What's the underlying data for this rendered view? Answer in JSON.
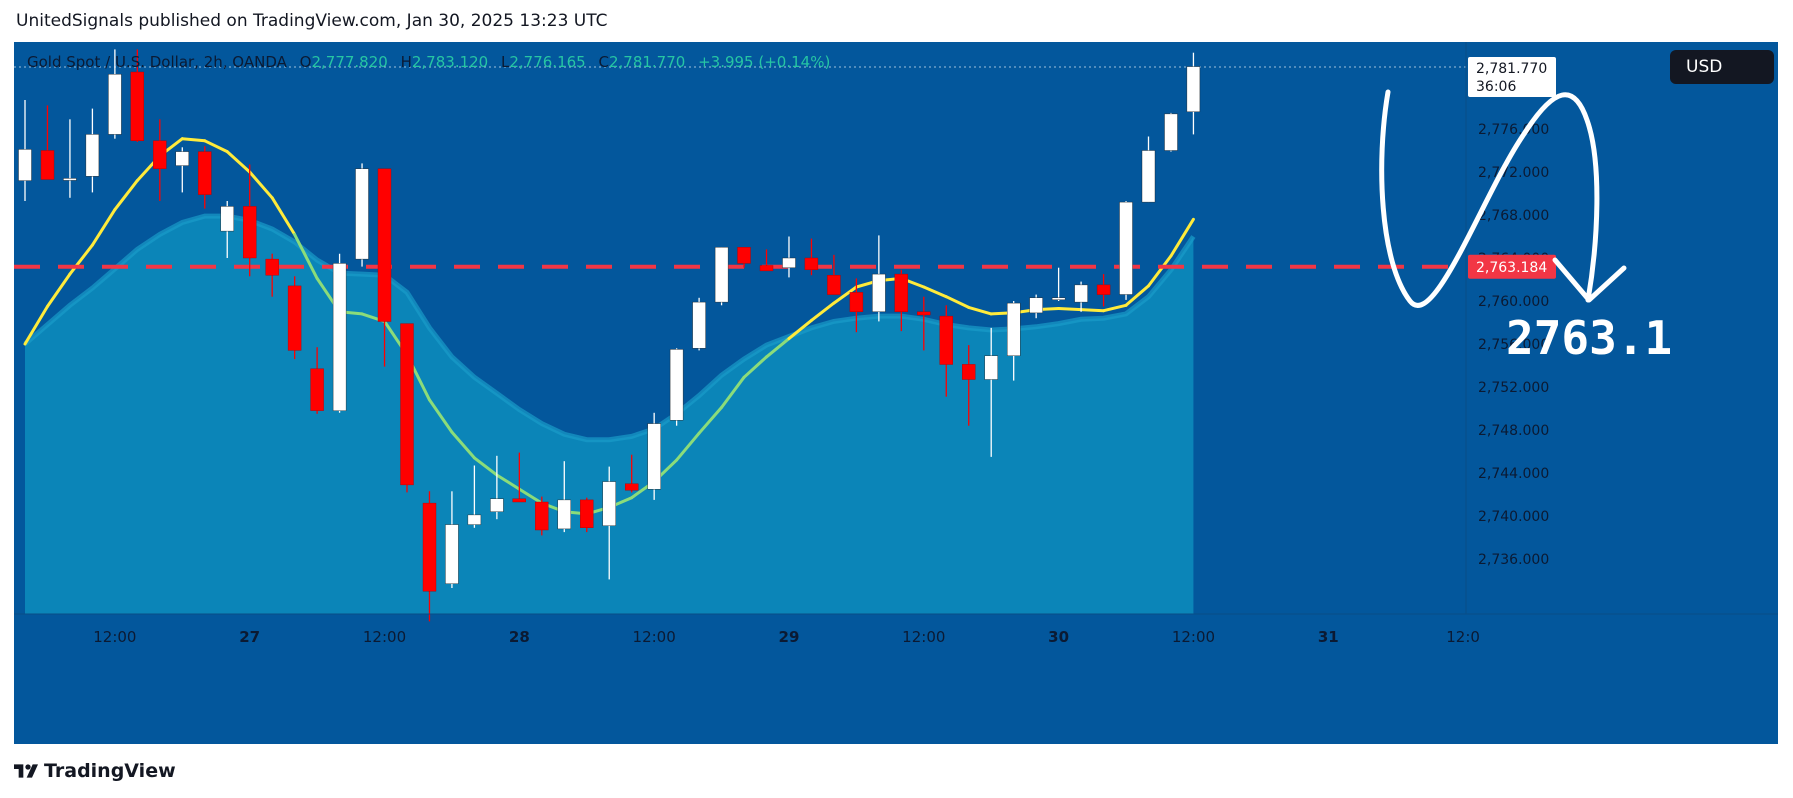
{
  "header": {
    "published_by": "UnitedSignals published on TradingView.com, Jan 30, 2025 13:23 UTC"
  },
  "legend": {
    "symbol": "Gold Spot / U.S. Dollar, 2h, OANDA",
    "o_label": "O",
    "o_value": "2,777.820",
    "h_label": "H",
    "h_value": "2,783.120",
    "l_label": "L",
    "l_value": "2,776.165",
    "c_label": "C",
    "c_value": "2,781.770",
    "change": "+3.995 (+0.14%)"
  },
  "currency_button": {
    "label": "USD"
  },
  "footer": {
    "brand": "TradingView"
  },
  "annotation": {
    "level_text": "2763.1"
  },
  "price_labels": {
    "last_price": "2,781.770",
    "countdown": "36:06",
    "level_price": "2,763.184"
  },
  "colors": {
    "background": "#03579c",
    "up": "#ffffff",
    "down": "#ff0000",
    "fast_ma": "#ffeb3b",
    "slow_ma_fill": "#0b85b8",
    "level_line": "#f23645"
  },
  "chart_data": {
    "type": "candlestick",
    "symbol": "Gold Spot / U.S. Dollar",
    "interval": "2h",
    "y_ticks": [
      "2,736.000",
      "2,740.000",
      "2,744.000",
      "2,748.000",
      "2,752.000",
      "2,756.000",
      "2,760.000",
      "2,764.000",
      "2,768.000",
      "2,772.000",
      "2,776.000",
      "2,780.000"
    ],
    "ylim": [
      2730.2,
      2783.4
    ],
    "x_ticks": [
      {
        "label": "12:00",
        "index": 4
      },
      {
        "label": "27",
        "index": 10
      },
      {
        "label": "12:00",
        "index": 16
      },
      {
        "label": "28",
        "index": 22
      },
      {
        "label": "12:00",
        "index": 28
      },
      {
        "label": "29",
        "index": 34
      },
      {
        "label": "12:00",
        "index": 40
      },
      {
        "label": "30",
        "index": 46
      },
      {
        "label": "12:00",
        "index": 52
      },
      {
        "label": "31",
        "index": 58
      },
      {
        "label": "12:0",
        "index": 64
      }
    ],
    "candles": [
      {
        "o": 2771.2,
        "h": 2778.7,
        "l": 2769.3,
        "c": 2774.1
      },
      {
        "o": 2774.0,
        "h": 2778.2,
        "l": 2771.5,
        "c": 2771.3
      },
      {
        "o": 2771.3,
        "h": 2776.9,
        "l": 2769.6,
        "c": 2771.4
      },
      {
        "o": 2771.6,
        "h": 2777.9,
        "l": 2770.1,
        "c": 2775.5
      },
      {
        "o": 2775.5,
        "h": 2783.4,
        "l": 2775.1,
        "c": 2781.1
      },
      {
        "o": 2781.3,
        "h": 2783.4,
        "l": 2774.8,
        "c": 2774.9
      },
      {
        "o": 2774.9,
        "h": 2776.9,
        "l": 2769.3,
        "c": 2772.3
      },
      {
        "o": 2772.6,
        "h": 2774.3,
        "l": 2770.1,
        "c": 2773.9
      },
      {
        "o": 2773.9,
        "h": 2774.4,
        "l": 2768.6,
        "c": 2769.9
      },
      {
        "o": 2766.5,
        "h": 2769.3,
        "l": 2764.0,
        "c": 2768.8
      },
      {
        "o": 2768.8,
        "h": 2772.7,
        "l": 2762.3,
        "c": 2764.0
      },
      {
        "o": 2763.9,
        "h": 2764.4,
        "l": 2760.4,
        "c": 2762.4
      },
      {
        "o": 2761.4,
        "h": 2762.3,
        "l": 2754.6,
        "c": 2755.4
      },
      {
        "o": 2753.7,
        "h": 2755.7,
        "l": 2749.5,
        "c": 2749.8
      },
      {
        "o": 2749.8,
        "h": 2764.4,
        "l": 2749.6,
        "c": 2763.5
      },
      {
        "o": 2763.9,
        "h": 2772.8,
        "l": 2763.2,
        "c": 2772.3
      },
      {
        "o": 2772.3,
        "h": 2772.3,
        "l": 2753.9,
        "c": 2758.1
      },
      {
        "o": 2757.9,
        "h": 2757.9,
        "l": 2742.2,
        "c": 2742.9
      },
      {
        "o": 2741.2,
        "h": 2742.3,
        "l": 2730.2,
        "c": 2733.0
      },
      {
        "o": 2733.7,
        "h": 2742.3,
        "l": 2733.3,
        "c": 2739.2
      },
      {
        "o": 2739.2,
        "h": 2744.7,
        "l": 2738.9,
        "c": 2740.1
      },
      {
        "o": 2740.4,
        "h": 2745.6,
        "l": 2739.7,
        "c": 2741.6
      },
      {
        "o": 2741.6,
        "h": 2745.9,
        "l": 2741.3,
        "c": 2741.3
      },
      {
        "o": 2741.3,
        "h": 2741.8,
        "l": 2738.2,
        "c": 2738.7
      },
      {
        "o": 2738.8,
        "h": 2745.1,
        "l": 2738.5,
        "c": 2741.5
      },
      {
        "o": 2741.5,
        "h": 2741.7,
        "l": 2738.5,
        "c": 2738.9
      },
      {
        "o": 2739.1,
        "h": 2744.6,
        "l": 2734.1,
        "c": 2743.2
      },
      {
        "o": 2743.0,
        "h": 2745.7,
        "l": 2742.2,
        "c": 2742.4
      },
      {
        "o": 2742.5,
        "h": 2749.6,
        "l": 2741.5,
        "c": 2748.6
      },
      {
        "o": 2748.9,
        "h": 2755.6,
        "l": 2748.4,
        "c": 2755.5
      },
      {
        "o": 2755.6,
        "h": 2760.3,
        "l": 2755.4,
        "c": 2759.9
      },
      {
        "o": 2759.9,
        "h": 2765.0,
        "l": 2759.6,
        "c": 2765.0
      },
      {
        "o": 2765.0,
        "h": 2765.0,
        "l": 2763.1,
        "c": 2763.5
      },
      {
        "o": 2763.3,
        "h": 2764.8,
        "l": 2762.9,
        "c": 2762.8
      },
      {
        "o": 2763.1,
        "h": 2766.0,
        "l": 2762.2,
        "c": 2764.0
      },
      {
        "o": 2764.0,
        "h": 2765.8,
        "l": 2762.4,
        "c": 2762.9
      },
      {
        "o": 2762.4,
        "h": 2764.3,
        "l": 2760.7,
        "c": 2760.6
      },
      {
        "o": 2760.8,
        "h": 2762.1,
        "l": 2757.1,
        "c": 2759.0
      },
      {
        "o": 2759.0,
        "h": 2766.1,
        "l": 2758.1,
        "c": 2762.5
      },
      {
        "o": 2762.5,
        "h": 2762.9,
        "l": 2757.2,
        "c": 2759.0
      },
      {
        "o": 2759.0,
        "h": 2760.4,
        "l": 2755.4,
        "c": 2758.7
      },
      {
        "o": 2758.6,
        "h": 2759.6,
        "l": 2751.1,
        "c": 2754.1
      },
      {
        "o": 2754.1,
        "h": 2755.9,
        "l": 2748.4,
        "c": 2752.7
      },
      {
        "o": 2752.7,
        "h": 2757.5,
        "l": 2745.5,
        "c": 2754.9
      },
      {
        "o": 2754.9,
        "h": 2760.0,
        "l": 2752.6,
        "c": 2759.8
      },
      {
        "o": 2758.9,
        "h": 2760.6,
        "l": 2758.4,
        "c": 2760.3
      },
      {
        "o": 2760.3,
        "h": 2763.1,
        "l": 2760.0,
        "c": 2760.3
      },
      {
        "o": 2759.9,
        "h": 2761.8,
        "l": 2759.0,
        "c": 2761.5
      },
      {
        "o": 2761.5,
        "h": 2762.5,
        "l": 2759.5,
        "c": 2760.6
      },
      {
        "o": 2760.6,
        "h": 2769.3,
        "l": 2760.1,
        "c": 2769.2
      },
      {
        "o": 2769.2,
        "h": 2775.3,
        "l": 2769.2,
        "c": 2774.0
      },
      {
        "o": 2774.0,
        "h": 2777.5,
        "l": 2773.9,
        "c": 2777.4
      },
      {
        "o": 2777.6,
        "h": 2783.1,
        "l": 2775.5,
        "c": 2781.8
      }
    ],
    "fast_ma": [
      2756.0,
      2759.5,
      2762.5,
      2765.2,
      2768.5,
      2771.2,
      2773.5,
      2775.1,
      2774.9,
      2773.9,
      2772.0,
      2769.6,
      2766.2,
      2762.1,
      2759.0,
      2758.8,
      2758.1,
      2755.0,
      2750.8,
      2747.8,
      2745.4,
      2743.8,
      2742.5,
      2741.2,
      2740.4,
      2740.2,
      2740.8,
      2741.7,
      2743.2,
      2745.2,
      2747.7,
      2750.1,
      2752.9,
      2754.8,
      2756.5,
      2758.2,
      2759.8,
      2761.3,
      2761.9,
      2762.1,
      2761.3,
      2760.4,
      2759.4,
      2758.8,
      2758.9,
      2759.2,
      2759.3,
      2759.2,
      2759.1,
      2759.6,
      2761.4,
      2764.2,
      2767.6
    ],
    "slow_ma": [
      2756.0,
      2757.8,
      2759.6,
      2761.2,
      2763.0,
      2764.8,
      2766.2,
      2767.3,
      2767.9,
      2767.9,
      2767.5,
      2766.7,
      2765.5,
      2763.8,
      2762.6,
      2762.5,
      2762.4,
      2760.8,
      2757.5,
      2754.8,
      2752.9,
      2751.4,
      2749.9,
      2748.6,
      2747.6,
      2747.1,
      2747.1,
      2747.4,
      2748.1,
      2749.5,
      2751.2,
      2753.1,
      2754.6,
      2755.9,
      2756.7,
      2757.5,
      2758.1,
      2758.4,
      2758.6,
      2758.6,
      2758.3,
      2757.8,
      2757.5,
      2757.3,
      2757.4,
      2757.6,
      2757.9,
      2758.3,
      2758.4,
      2758.8,
      2760.4,
      2762.9,
      2766.0
    ],
    "level_line": 2763.184,
    "last_price": 2781.77
  }
}
